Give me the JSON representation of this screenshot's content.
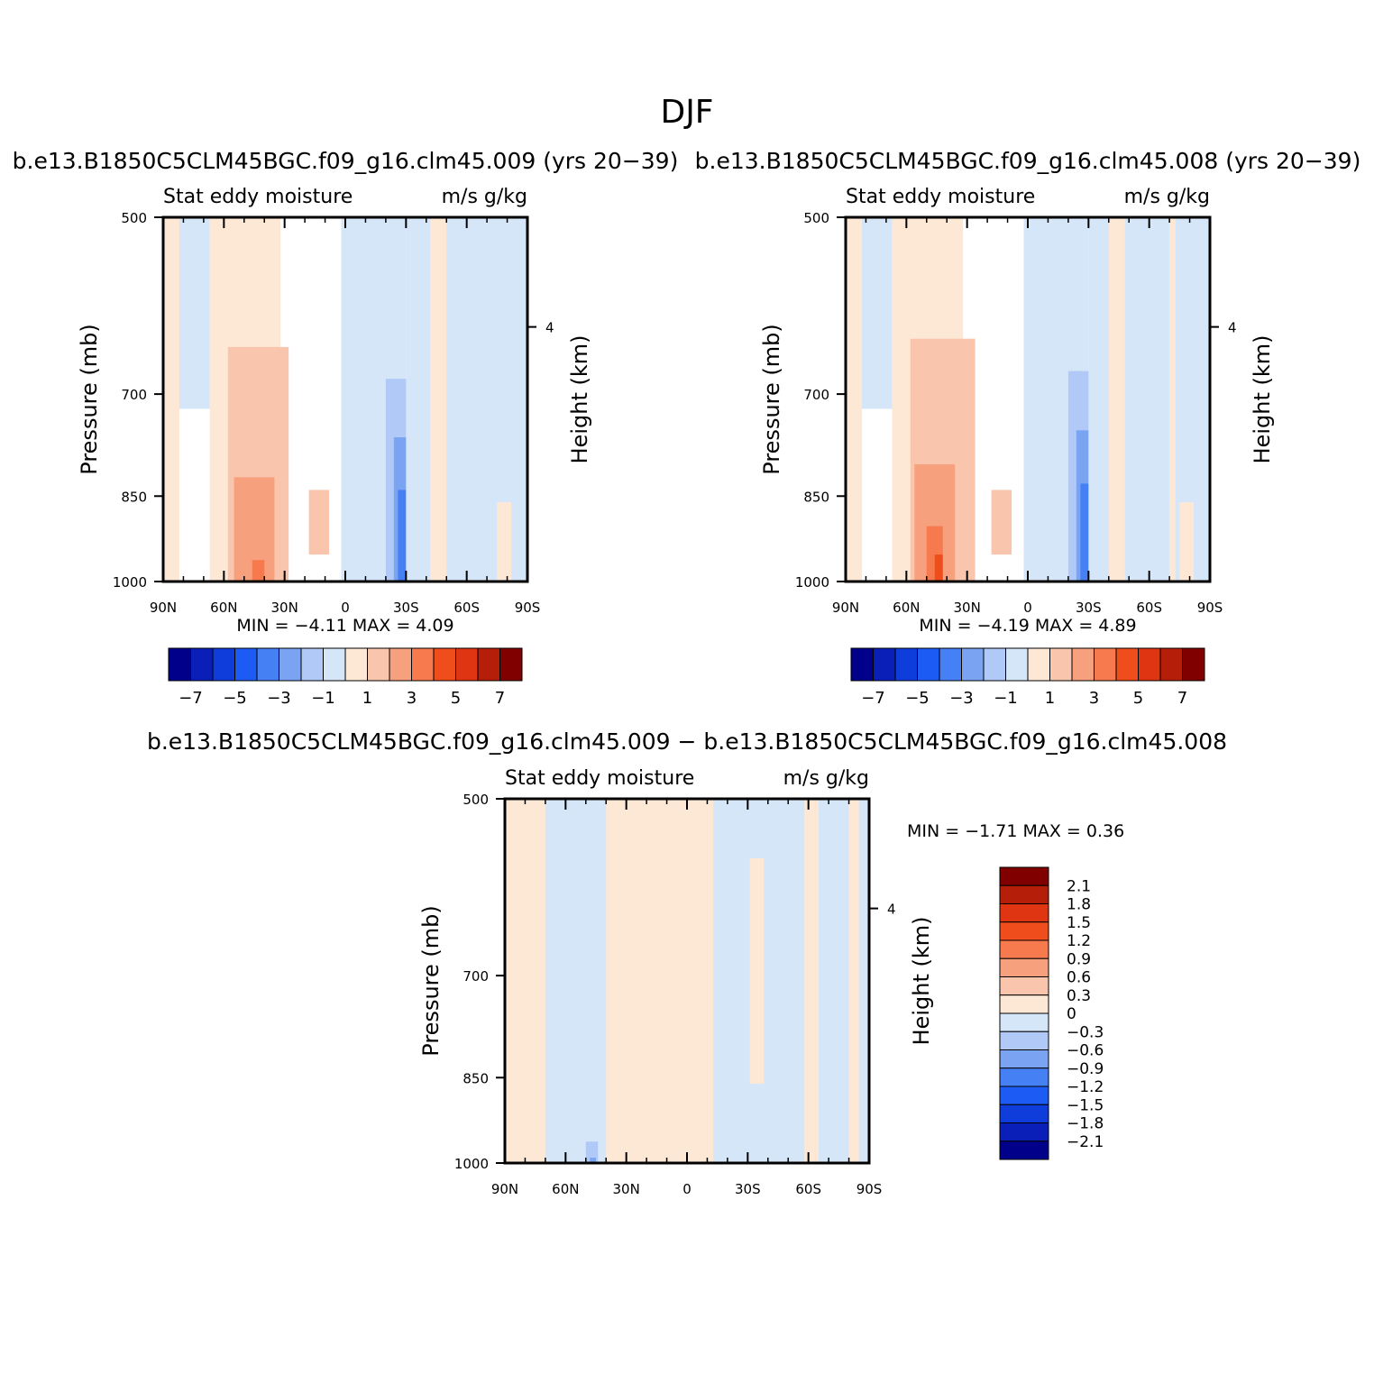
{
  "figure": {
    "title": "DJF"
  },
  "colors": {
    "abs_scale": [
      "#00008b",
      "#0a1fb8",
      "#0f3ddb",
      "#1c5cf5",
      "#4680f5",
      "#7aa4f2",
      "#b0c9f7",
      "#d6e6f9",
      "#fde8d6",
      "#f9c6ad",
      "#f6a07e",
      "#f67a4d",
      "#f04d1c",
      "#e03512",
      "#b51f0a",
      "#800000"
    ],
    "diff_scale": [
      "#00008b",
      "#0a1fb8",
      "#0f3ddb",
      "#1c5cf5",
      "#4680f5",
      "#7aa4f2",
      "#b0c9f7",
      "#d6e6f9",
      "#fde8d6",
      "#f9c6ad",
      "#f6a07e",
      "#f67a4d",
      "#f04d1c",
      "#e03512",
      "#b51f0a",
      "#800000"
    ]
  },
  "chart_data": [
    {
      "type": "heatmap",
      "panel": "top-left",
      "title": "b.e13.B1850C5CLM45BGC.f09_g16.clm45.009 (yrs 20-39)",
      "subtitle_left": "Stat eddy moisture",
      "subtitle_right": "m/s g/kg",
      "xlabel": "",
      "ylabel": "Pressure (mb)",
      "y2label": "Height (km)",
      "x_ticks": [
        "90N",
        "60N",
        "30N",
        "0",
        "30S",
        "60S",
        "90S"
      ],
      "y_ticks": [
        "500",
        "700",
        "850",
        "1000"
      ],
      "y2_ticks": [
        "4"
      ],
      "min_label": "MIN =",
      "min": "-4.11",
      "max_label": "MAX =",
      "max": "4.09",
      "colorbar_labels": [
        "-7",
        "-5",
        "-3",
        "-1",
        "1",
        "3",
        "5",
        "7"
      ],
      "field": [
        {
          "x0": 90,
          "x1": 82,
          "p0": 1000,
          "p1": 500,
          "level": 8
        },
        {
          "x0": 82,
          "x1": 67,
          "p0": 720,
          "p1": 500,
          "level": 7
        },
        {
          "x0": 67,
          "x1": 32,
          "p0": 1000,
          "p1": 500,
          "level": 8
        },
        {
          "x0": 58,
          "x1": 28,
          "p0": 1000,
          "p1": 640,
          "level": 9
        },
        {
          "x0": 55,
          "x1": 35,
          "p0": 1000,
          "p1": 820,
          "level": 10
        },
        {
          "x0": 46,
          "x1": 40,
          "p0": 1000,
          "p1": 960,
          "level": 11
        },
        {
          "x0": 18,
          "x1": 8,
          "p0": 950,
          "p1": 840,
          "level": 9
        },
        {
          "x0": 2,
          "x1": -30,
          "p0": 1000,
          "p1": 500,
          "level": 7
        },
        {
          "x0": -20,
          "x1": -38,
          "p0": 1000,
          "p1": 680,
          "level": 6
        },
        {
          "x0": -24,
          "x1": -34,
          "p0": 1000,
          "p1": 760,
          "level": 5
        },
        {
          "x0": -26,
          "x1": -32,
          "p0": 1000,
          "p1": 840,
          "level": 4
        },
        {
          "x0": -30,
          "x1": -90,
          "p0": 1000,
          "p1": 500,
          "level": 7
        },
        {
          "x0": -42,
          "x1": -50,
          "p0": 1000,
          "p1": 500,
          "level": 8
        },
        {
          "x0": -75,
          "x1": -82,
          "p0": 1000,
          "p1": 860,
          "level": 8
        }
      ]
    },
    {
      "type": "heatmap",
      "panel": "top-right",
      "title": "b.e13.B1850C5CLM45BGC.f09_g16.clm45.008 (yrs 20-39)",
      "subtitle_left": "Stat eddy moisture",
      "subtitle_right": "m/s g/kg",
      "xlabel": "",
      "ylabel": "Pressure (mb)",
      "y2label": "Height (km)",
      "x_ticks": [
        "90N",
        "60N",
        "30N",
        "0",
        "30S",
        "60S",
        "90S"
      ],
      "y_ticks": [
        "500",
        "700",
        "850",
        "1000"
      ],
      "y2_ticks": [
        "4"
      ],
      "min_label": "MIN =",
      "min": "-4.19",
      "max_label": "MAX =",
      "max": "4.89",
      "colorbar_labels": [
        "-7",
        "-5",
        "-3",
        "-1",
        "1",
        "3",
        "5",
        "7"
      ],
      "field": [
        {
          "x0": 90,
          "x1": 82,
          "p0": 1000,
          "p1": 500,
          "level": 8
        },
        {
          "x0": 82,
          "x1": 67,
          "p0": 720,
          "p1": 500,
          "level": 7
        },
        {
          "x0": 67,
          "x1": 32,
          "p0": 1000,
          "p1": 500,
          "level": 8
        },
        {
          "x0": 58,
          "x1": 26,
          "p0": 1000,
          "p1": 630,
          "level": 9
        },
        {
          "x0": 56,
          "x1": 36,
          "p0": 1000,
          "p1": 800,
          "level": 10
        },
        {
          "x0": 50,
          "x1": 42,
          "p0": 1000,
          "p1": 900,
          "level": 11
        },
        {
          "x0": 46,
          "x1": 42,
          "p0": 1000,
          "p1": 950,
          "level": 12
        },
        {
          "x0": 18,
          "x1": 8,
          "p0": 950,
          "p1": 840,
          "level": 9
        },
        {
          "x0": 2,
          "x1": -30,
          "p0": 1000,
          "p1": 500,
          "level": 7
        },
        {
          "x0": -20,
          "x1": -38,
          "p0": 1000,
          "p1": 670,
          "level": 6
        },
        {
          "x0": -24,
          "x1": -34,
          "p0": 1000,
          "p1": 750,
          "level": 5
        },
        {
          "x0": -26,
          "x1": -33,
          "p0": 1000,
          "p1": 830,
          "level": 4
        },
        {
          "x0": -30,
          "x1": -90,
          "p0": 1000,
          "p1": 500,
          "level": 7
        },
        {
          "x0": -40,
          "x1": -48,
          "p0": 1000,
          "p1": 500,
          "level": 8
        },
        {
          "x0": -70,
          "x1": -73,
          "p0": 1000,
          "p1": 500,
          "level": 8
        },
        {
          "x0": -75,
          "x1": -82,
          "p0": 1000,
          "p1": 860,
          "level": 8
        }
      ]
    },
    {
      "type": "heatmap",
      "panel": "bottom",
      "title": "b.e13.B1850C5CLM45BGC.f09_g16.clm45.009 - b.e13.B1850C5CLM45BGC.f09_g16.clm45.008",
      "subtitle_left": "Stat eddy moisture",
      "subtitle_right": "m/s g/kg",
      "xlabel": "",
      "ylabel": "Pressure (mb)",
      "y2label": "Height (km)",
      "x_ticks": [
        "90N",
        "60N",
        "30N",
        "0",
        "30S",
        "60S",
        "90S"
      ],
      "y_ticks": [
        "500",
        "700",
        "850",
        "1000"
      ],
      "y2_ticks": [
        "4"
      ],
      "min_label": "MIN =",
      "min": "-1.71",
      "max_label": "MAX =",
      "max": "0.36",
      "colorbar_labels": [
        "2.1",
        "1.8",
        "1.5",
        "1.2",
        "0.9",
        "0.6",
        "0.3",
        "0",
        "-0.3",
        "-0.6",
        "-0.9",
        "-1.2",
        "-1.5",
        "-1.8",
        "-2.1"
      ],
      "field": [
        {
          "x0": 90,
          "x1": -90,
          "p0": 1000,
          "p1": 500,
          "level": 8
        },
        {
          "x0": 70,
          "x1": 40,
          "p0": 1000,
          "p1": 500,
          "level": 7
        },
        {
          "x0": -13,
          "x1": -45,
          "p0": 1000,
          "p1": 500,
          "level": 7
        },
        {
          "x0": -31,
          "x1": -38,
          "p0": 860,
          "p1": 560,
          "level": 8
        },
        {
          "x0": -45,
          "x1": -90,
          "p0": 1000,
          "p1": 500,
          "level": 7
        },
        {
          "x0": -58,
          "x1": -65,
          "p0": 1000,
          "p1": 500,
          "level": 8
        },
        {
          "x0": -80,
          "x1": -85,
          "p0": 1000,
          "p1": 500,
          "level": 8
        },
        {
          "x0": 50,
          "x1": 44,
          "p0": 1000,
          "p1": 960,
          "level": 6
        },
        {
          "x0": 48,
          "x1": 45,
          "p0": 1000,
          "p1": 990,
          "level": 5
        }
      ]
    }
  ]
}
